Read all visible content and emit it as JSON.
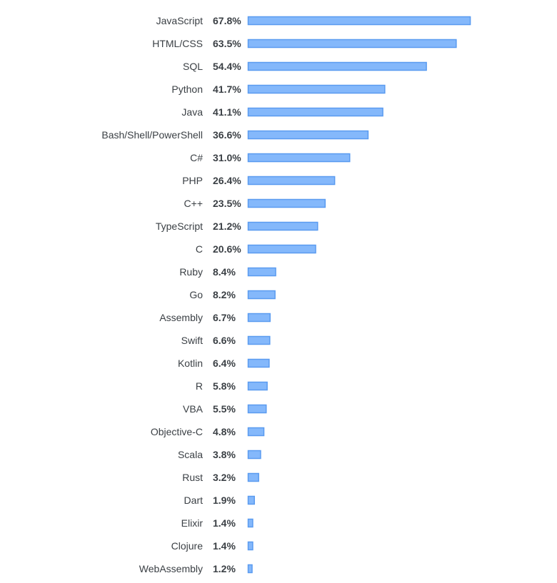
{
  "chart_data": {
    "type": "bar",
    "orientation": "horizontal",
    "categories": [
      "JavaScript",
      "HTML/CSS",
      "SQL",
      "Python",
      "Java",
      "Bash/Shell/PowerShell",
      "C#",
      "PHP",
      "C++",
      "TypeScript",
      "C",
      "Ruby",
      "Go",
      "Assembly",
      "Swift",
      "Kotlin",
      "R",
      "VBA",
      "Objective-C",
      "Scala",
      "Rust",
      "Dart",
      "Elixir",
      "Clojure",
      "WebAssembly"
    ],
    "values": [
      67.8,
      63.5,
      54.4,
      41.7,
      41.1,
      36.6,
      31.0,
      26.4,
      23.5,
      21.2,
      20.6,
      8.4,
      8.2,
      6.7,
      6.6,
      6.4,
      5.8,
      5.5,
      4.8,
      3.8,
      3.2,
      1.9,
      1.4,
      1.4,
      1.2
    ],
    "value_labels": [
      "67.8%",
      "63.5%",
      "54.4%",
      "41.7%",
      "41.1%",
      "36.6%",
      "31.0%",
      "26.4%",
      "23.5%",
      "21.2%",
      "20.6%",
      "8.4%",
      "8.2%",
      "6.7%",
      "6.6%",
      "6.4%",
      "5.8%",
      "5.5%",
      "4.8%",
      "3.8%",
      "3.2%",
      "1.9%",
      "1.4%",
      "1.4%",
      "1.2%"
    ],
    "title": "",
    "xlabel": "",
    "ylabel": "",
    "xlim": [
      0,
      68
    ],
    "grid": false,
    "legend": "none",
    "bar_fill": "#84b8fb",
    "bar_stroke": "#5a9bf0"
  }
}
